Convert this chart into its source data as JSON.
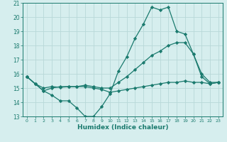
{
  "title": "",
  "xlabel": "Humidex (Indice chaleur)",
  "x": [
    0,
    1,
    2,
    3,
    4,
    5,
    6,
    7,
    8,
    9,
    10,
    11,
    12,
    13,
    14,
    15,
    16,
    17,
    18,
    19,
    20,
    21,
    22,
    23
  ],
  "line_max": [
    15.8,
    15.3,
    14.8,
    14.5,
    14.1,
    14.1,
    13.6,
    13.0,
    13.0,
    13.7,
    14.6,
    16.2,
    17.2,
    18.5,
    19.5,
    20.7,
    20.5,
    20.7,
    19.0,
    18.8,
    17.4,
    15.8,
    15.3,
    15.4
  ],
  "line_mean": [
    15.8,
    15.3,
    15.0,
    15.1,
    15.05,
    15.1,
    15.1,
    15.2,
    15.1,
    15.0,
    15.0,
    15.4,
    15.8,
    16.3,
    16.8,
    17.3,
    17.6,
    18.0,
    18.2,
    18.2,
    17.4,
    16.0,
    15.4,
    15.4
  ],
  "line_min": [
    15.8,
    15.3,
    14.8,
    15.0,
    15.1,
    15.1,
    15.1,
    15.1,
    15.0,
    14.9,
    14.7,
    14.8,
    14.9,
    15.0,
    15.1,
    15.2,
    15.3,
    15.4,
    15.4,
    15.5,
    15.4,
    15.4,
    15.3,
    15.4
  ],
  "line_color": "#1a7a6e",
  "bg_color": "#d6eeee",
  "grid_color": "#b8d8d8",
  "ylim": [
    13,
    21
  ],
  "yticks": [
    13,
    14,
    15,
    16,
    17,
    18,
    19,
    20,
    21
  ],
  "xlim": [
    -0.5,
    23.5
  ],
  "xticks": [
    0,
    1,
    2,
    3,
    4,
    5,
    6,
    7,
    8,
    9,
    10,
    11,
    12,
    13,
    14,
    15,
    16,
    17,
    18,
    19,
    20,
    21,
    22,
    23
  ]
}
